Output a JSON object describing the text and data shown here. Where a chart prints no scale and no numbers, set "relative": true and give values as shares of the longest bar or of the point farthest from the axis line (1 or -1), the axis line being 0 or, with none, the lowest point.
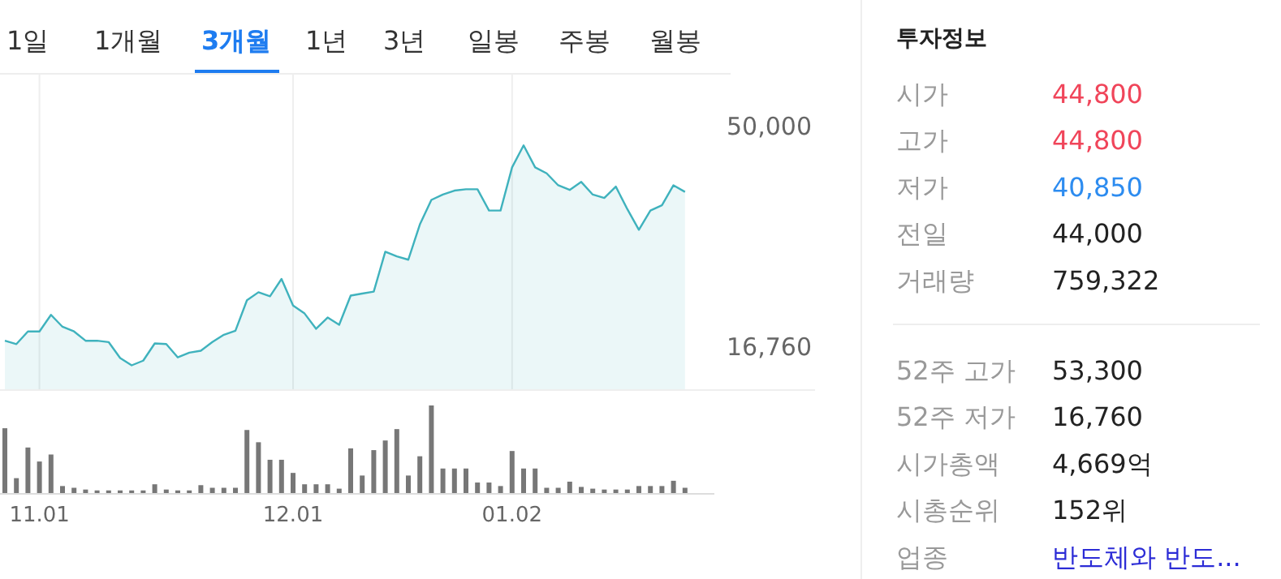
{
  "chart_data": [
    {
      "type": "other",
      "annotations": [
        "1일",
        "1개월",
        "3개월",
        "1년",
        "3년",
        "일봉",
        "주봉",
        "월봉"
      ],
      "colors": [
        "#333333",
        "#333333",
        "#1e7cf0",
        "#333333",
        "#333333",
        "#333333",
        "#333333",
        "#333333"
      ]
    },
    {
      "type": "area",
      "categories": [
        null,
        null,
        null,
        "11.01",
        null,
        null,
        null,
        null,
        null,
        null,
        null,
        null,
        null,
        null,
        null,
        null,
        null,
        null,
        null,
        null,
        null,
        null,
        null,
        null,
        null,
        "12.01",
        null,
        null,
        null,
        null,
        null,
        null,
        null,
        null,
        null,
        null,
        null,
        null,
        null,
        null,
        null,
        null,
        null,
        null,
        "01.02",
        null,
        null,
        null,
        null,
        null,
        null,
        null,
        null,
        null,
        null,
        null,
        null,
        null,
        null,
        null
      ],
      "series": [
        {
          "color": "#3fb2bd",
          "values": [
            17700,
            17200,
            19100,
            19100,
            21600,
            19800,
            19100,
            17700,
            17700,
            17500,
            15100,
            14000,
            14700,
            17300,
            17200,
            15200,
            15900,
            16200,
            17500,
            18600,
            19200,
            23800,
            25000,
            24400,
            27000,
            23000,
            21800,
            19500,
            21200,
            20100,
            24500,
            24800,
            25100,
            31100,
            30400,
            29900,
            35200,
            38900,
            39700,
            40300,
            40500,
            40500,
            37300,
            37300,
            43800,
            47100,
            43800,
            42900,
            41100,
            40400,
            41600,
            39700,
            39200,
            40900,
            37500,
            34400,
            37300,
            38100,
            41100,
            40100
          ]
        }
      ],
      "ylim": [
        10400,
        58000
      ],
      "yticks": [
        {
          "value": 50000,
          "label": "50,000"
        },
        {
          "value": 16760,
          "label": "16,760"
        }
      ],
      "grid": "x",
      "tick_labels": "y"
    },
    {
      "type": "bar",
      "relative": true,
      "color": "#777777",
      "categories": [
        null,
        null,
        null,
        "11.01",
        null,
        null,
        null,
        null,
        null,
        null,
        null,
        null,
        null,
        null,
        null,
        null,
        null,
        null,
        null,
        null,
        null,
        null,
        null,
        null,
        null,
        "12.01",
        null,
        null,
        null,
        null,
        null,
        null,
        null,
        null,
        null,
        null,
        null,
        null,
        null,
        null,
        null,
        null,
        null,
        null,
        "01.02",
        null,
        null,
        null,
        null,
        null,
        null,
        null,
        null,
        null,
        null,
        null,
        null,
        null,
        null,
        null
      ],
      "values": [
        0.74,
        0.17,
        0.52,
        0.36,
        0.44,
        0.08,
        0.06,
        0.04,
        0.03,
        0.03,
        0.03,
        0.03,
        0.03,
        0.1,
        0.04,
        0.03,
        0.03,
        0.09,
        0.06,
        0.06,
        0.06,
        0.72,
        0.58,
        0.38,
        0.38,
        0.23,
        0.1,
        0.1,
        0.1,
        0.05,
        0.51,
        0.2,
        0.49,
        0.6,
        0.73,
        0.2,
        0.42,
        1,
        0.28,
        0.28,
        0.28,
        0.12,
        0.12,
        0.08,
        0.48,
        0.28,
        0.28,
        0.06,
        0.06,
        0.13,
        0.07,
        0.05,
        0.04,
        0.04,
        0.04,
        0.08,
        0.08,
        0.08,
        0.14,
        0.06
      ],
      "tick_labels": "x"
    },
    {
      "type": "other",
      "title": "투자정보",
      "annotations": [
        "시가",
        "44,800",
        "고가",
        "44,800",
        "저가",
        "40,850",
        "전일",
        "44,000",
        "거래량",
        "759,322",
        "52주 고가",
        "53,300",
        "52주 저가",
        "16,760",
        "시가총액",
        "4,669억",
        "시총순위",
        "152위",
        "업종",
        "반도체와 반도..."
      ],
      "colors": [
        "#999999",
        "#f0455a",
        "#999999",
        "#f0455a",
        "#999999",
        "#2d8cf0",
        "#999999",
        "#222222",
        "#999999",
        "#222222",
        "#999999",
        "#222222",
        "#999999",
        "#222222",
        "#999999",
        "#222222",
        "#999999",
        "#222222",
        "#999999",
        "#2c2cd6"
      ]
    }
  ]
}
